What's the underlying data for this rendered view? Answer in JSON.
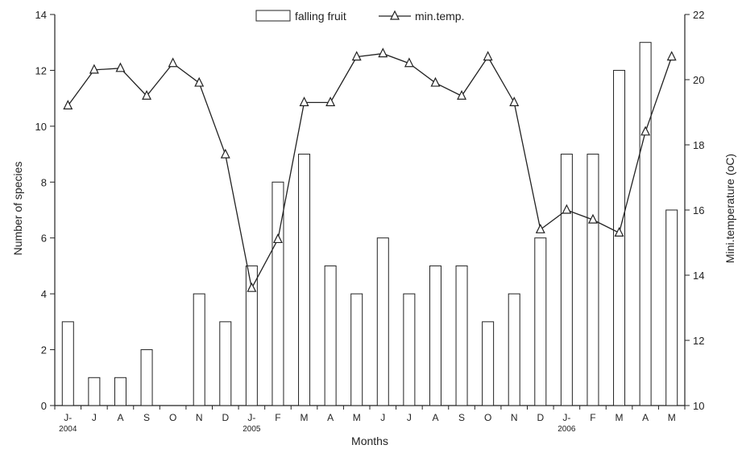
{
  "chart_data": {
    "type": "bar",
    "title": "",
    "xlabel": "Months",
    "ylabel": "Number of species",
    "y2label": "Mini.temperature (oC)",
    "ylim": [
      0,
      14
    ],
    "y2lim": [
      10,
      22
    ],
    "yticks": [
      "0",
      "2",
      "4",
      "6",
      "8",
      "10",
      "12",
      "14"
    ],
    "y2ticks": [
      "10",
      "12",
      "14",
      "16",
      "18",
      "20",
      "22"
    ],
    "categories": [
      "J-",
      "J",
      "A",
      "S",
      "O",
      "N",
      "D",
      "J-",
      "F",
      "M",
      "A",
      "M",
      "J",
      "J",
      "A",
      "S",
      "O",
      "N",
      "D",
      "J-",
      "F",
      "M",
      "A",
      "M"
    ],
    "year_labels": [
      {
        "index": 0,
        "label": "2004"
      },
      {
        "index": 7,
        "label": "2005"
      },
      {
        "index": 19,
        "label": "2006"
      }
    ],
    "legend_position": "top-center",
    "series": [
      {
        "name": "falling fruit",
        "type": "bar",
        "axis": "left",
        "values": [
          3,
          1,
          1,
          2,
          0,
          4,
          3,
          5,
          8,
          9,
          5,
          4,
          6,
          4,
          5,
          5,
          3,
          4,
          6,
          9,
          9,
          12,
          13,
          7
        ]
      },
      {
        "name": "min.temp.",
        "type": "line",
        "marker": "triangle",
        "axis": "right",
        "values": [
          19.2,
          20.3,
          20.35,
          19.5,
          20.5,
          19.9,
          17.7,
          13.6,
          15.1,
          19.3,
          19.3,
          20.7,
          20.8,
          20.5,
          19.9,
          19.5,
          20.7,
          19.3,
          15.4,
          16.0,
          15.7,
          15.3,
          18.4,
          20.7
        ]
      }
    ]
  }
}
